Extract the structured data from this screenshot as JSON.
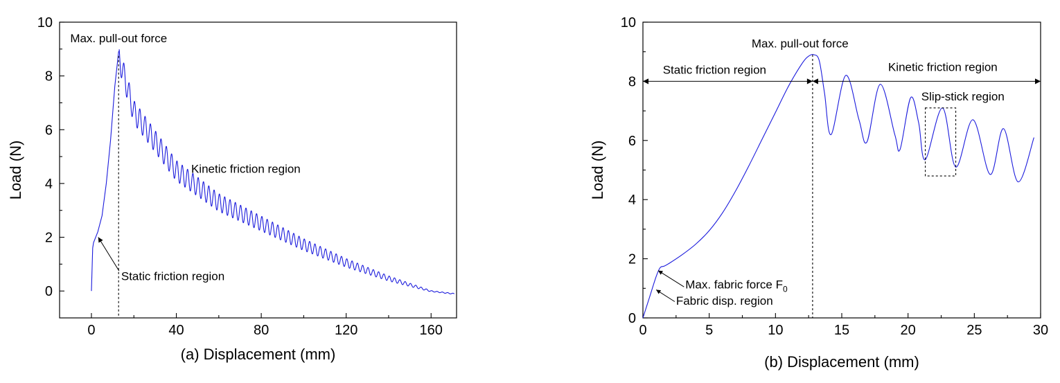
{
  "chart_data": [
    {
      "type": "line",
      "xlabel": "(a) Displacement (mm)",
      "ylabel": "Load (N)",
      "xlim": [
        -15,
        172
      ],
      "ylim": [
        -1,
        10
      ],
      "xticks": [
        0,
        40,
        80,
        120,
        160
      ],
      "yticks": [
        0,
        2,
        4,
        6,
        8,
        10
      ],
      "grid": false,
      "series": [
        {
          "color": "#1a1adc",
          "model": "pull-out with slip-stick oscillation",
          "peak": {
            "x": 12.8,
            "y": 8.9
          },
          "end": {
            "x": 171,
            "y": -0.1
          },
          "oscillation_period_mm": 2.5,
          "x": [
            0,
            0.6,
            1.0,
            3,
            5,
            7,
            9,
            11,
            12.8,
            20,
            40,
            60,
            80,
            100,
            120,
            140,
            160,
            171
          ],
          "y": [
            0,
            1.6,
            1.8,
            2.2,
            2.8,
            4.0,
            5.6,
            7.6,
            8.9,
            6.8,
            4.6,
            3.4,
            2.6,
            1.8,
            1.1,
            0.5,
            0.0,
            -0.1
          ]
        }
      ],
      "annotations": [
        {
          "text": "Max. pull-out force",
          "x": -10,
          "y": 9.25
        },
        {
          "text": "Kinetic friction region",
          "x": 47,
          "y": 4.4
        },
        {
          "text": "Static friction region",
          "x": 14,
          "y": 0.4
        }
      ]
    },
    {
      "type": "line",
      "xlabel": "(b) Displacement (mm)",
      "ylabel": "Load (N)",
      "xlim": [
        0,
        30
      ],
      "ylim": [
        0,
        10
      ],
      "xticks": [
        0,
        5,
        10,
        15,
        20,
        25,
        30
      ],
      "yticks": [
        0,
        2,
        4,
        6,
        8,
        10
      ],
      "grid": false,
      "series": [
        {
          "color": "#1a1adc",
          "x": [
            0,
            0.5,
            1.0,
            1.3,
            1.6,
            2.0,
            3,
            4,
            5,
            6,
            7,
            8,
            9,
            10,
            11,
            12,
            12.5,
            12.9,
            13.3,
            13.7,
            14.2,
            15.3,
            16.3,
            16.9,
            17.9,
            19.0,
            19.4,
            20.2,
            20.8,
            21.3,
            22.6,
            23.6,
            24.9,
            26.2,
            27.2,
            28.3,
            29.5
          ],
          "y": [
            0,
            0.7,
            1.4,
            1.7,
            1.75,
            1.85,
            2.15,
            2.5,
            2.95,
            3.55,
            4.3,
            5.15,
            6.05,
            6.95,
            7.85,
            8.6,
            8.85,
            8.9,
            8.7,
            7.6,
            6.2,
            8.2,
            6.7,
            5.95,
            7.9,
            6.2,
            5.7,
            7.45,
            6.6,
            5.35,
            7.1,
            5.1,
            6.7,
            4.85,
            6.4,
            4.6,
            6.1
          ]
        }
      ],
      "annotations": [
        {
          "text": "Max. pull-out force",
          "x": 8.2,
          "y": 9.15
        },
        {
          "text": "Static friction region",
          "x": 1.5,
          "y": 8.25
        },
        {
          "text": "Kinetic friction region",
          "x": 18.5,
          "y": 8.35
        },
        {
          "text": "Slip-stick region",
          "x": 21.0,
          "y": 7.35
        },
        {
          "text": "Max. fabric force F",
          "subscript": "0",
          "x": 3.2,
          "y": 1.0
        },
        {
          "text": "Fabric disp. region",
          "x": 2.5,
          "y": 0.45
        }
      ],
      "dashed_box": {
        "x": [
          21.3,
          23.6
        ],
        "y": [
          4.8,
          7.1
        ]
      },
      "dashed_line_x": 12.8,
      "double_arrows": [
        {
          "x": [
            0,
            12.8
          ],
          "y": 8.0
        },
        {
          "x": [
            12.8,
            30
          ],
          "y": 8.0
        }
      ]
    }
  ]
}
